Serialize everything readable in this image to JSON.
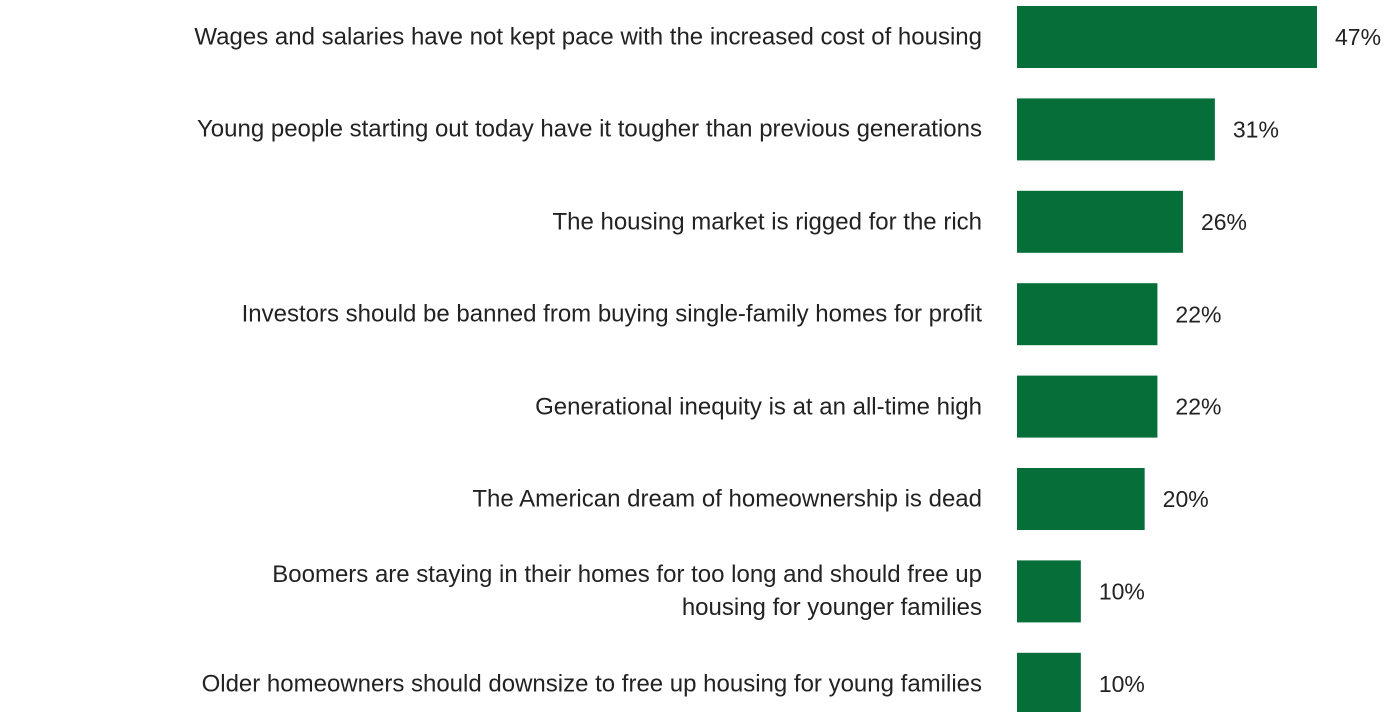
{
  "chart_data": {
    "type": "barh",
    "categories": [
      "Wages and salaries have not kept pace with the increased cost of housing",
      "Young people starting out today have it tougher than previous generations",
      "The housing market is rigged for the rich",
      "Investors should be banned from buying single-family homes for profit",
      "Generational inequity is at an all-time high",
      "The American dream of homeownership is dead",
      "Boomers are staying in their homes for too long and should free up\nhousing for younger families",
      "Older homeowners should downsize to free up housing for young families"
    ],
    "values": [
      47,
      31,
      26,
      22,
      22,
      20,
      10,
      10
    ],
    "value_labels": [
      "47%",
      "31%",
      "26%",
      "22%",
      "22%",
      "20%",
      "10%",
      "10%"
    ],
    "color": "#066e38"
  }
}
